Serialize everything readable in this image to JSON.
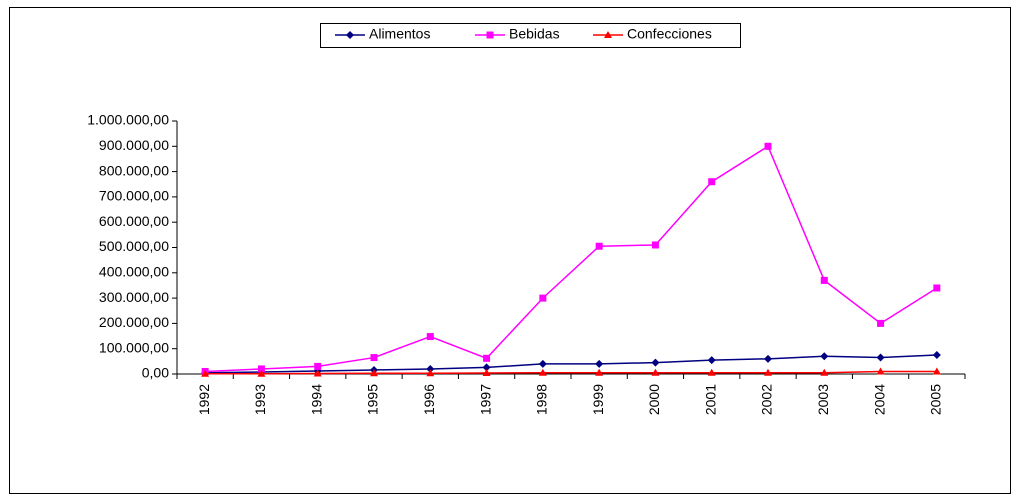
{
  "chart_data": {
    "type": "line",
    "categories": [
      "1992",
      "1993",
      "1994",
      "1995",
      "1996",
      "1997",
      "1998",
      "1999",
      "2000",
      "2001",
      "2002",
      "2003",
      "2004",
      "2005"
    ],
    "series": [
      {
        "name": "Alimentos",
        "color": "#000080",
        "marker": "diamond",
        "values": [
          5000,
          8000,
          12000,
          16000,
          20000,
          26000,
          40000,
          40000,
          45000,
          55000,
          60000,
          70000,
          65000,
          75000
        ]
      },
      {
        "name": "Bebidas",
        "color": "#ff00ff",
        "marker": "square",
        "values": [
          10000,
          20000,
          30000,
          65000,
          148000,
          62000,
          300000,
          505000,
          510000,
          760000,
          900000,
          370000,
          200000,
          340000
        ]
      },
      {
        "name": "Confecciones",
        "color": "#ff0000",
        "marker": "triangle",
        "values": [
          1000,
          1000,
          2000,
          3000,
          3000,
          4000,
          5000,
          5000,
          5000,
          5000,
          5000,
          5000,
          10000,
          10000
        ]
      }
    ],
    "ylim": [
      0,
      1000000
    ],
    "yticks": [
      {
        "value": 0,
        "label": "0,00"
      },
      {
        "value": 100000,
        "label": "100.000,00"
      },
      {
        "value": 200000,
        "label": "200.000,00"
      },
      {
        "value": 300000,
        "label": "300.000,00"
      },
      {
        "value": 400000,
        "label": "400.000,00"
      },
      {
        "value": 500000,
        "label": "500.000,00"
      },
      {
        "value": 600000,
        "label": "600.000,00"
      },
      {
        "value": 700000,
        "label": "700.000,00"
      },
      {
        "value": 800000,
        "label": "800.000,00"
      },
      {
        "value": 900000,
        "label": "900.000,00"
      },
      {
        "value": 1000000,
        "label": "1.000.000,00"
      }
    ],
    "grid": false,
    "legend": "top"
  }
}
